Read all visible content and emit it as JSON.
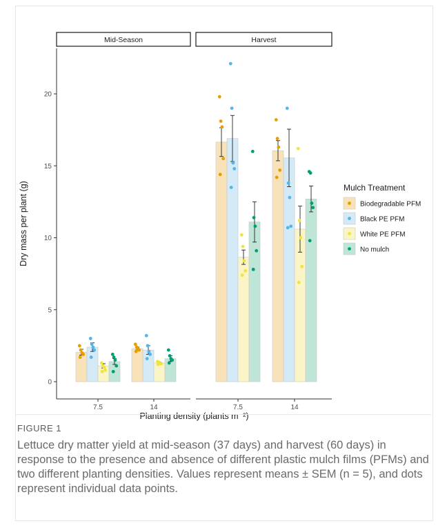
{
  "figure": {
    "label": "FIGURE 1",
    "caption": "Lettuce dry matter yield at mid-season (37 days) and harvest (60 days) in response to the presence and absence of different plastic mulch films (PFMs) and two different planting densities. Values represent means ± SEM (n = 5), and dots represent individual data points."
  },
  "chart_data": {
    "type": "bar",
    "panels": [
      "Mid-Season",
      "Harvest"
    ],
    "categories": [
      "7.5",
      "14"
    ],
    "xlabel": "Planting density (plants m⁻²)",
    "ylabel": "Dry mass per plant (g)",
    "ylim": [
      0,
      22.8
    ],
    "yticks": [
      0,
      5,
      10,
      15,
      20
    ],
    "legend": {
      "title": "Mulch Treatment",
      "position": "right"
    },
    "series": [
      {
        "name": "Biodegradable PFM",
        "color": "#E69F00",
        "fill": "#F8E2BA",
        "means": {
          "Mid-Season": [
            2.05,
            2.3
          ],
          "Harvest": [
            16.65,
            16.05
          ]
        },
        "sem": {
          "Mid-Season": [
            0.2,
            0.1
          ],
          "Harvest": [
            1.0,
            0.7
          ]
        },
        "points": {
          "Mid-Season": [
            [
              2.5,
              2.2,
              2.0,
              1.9,
              1.7
            ],
            [
              2.6,
              2.4,
              2.3,
              2.2,
              2.1
            ]
          ],
          "Harvest": [
            [
              19.8,
              18.1,
              17.7,
              15.5,
              14.4
            ],
            [
              18.2,
              16.9,
              16.3,
              14.7,
              14.2
            ]
          ]
        }
      },
      {
        "name": "Black PE PFM",
        "color": "#56B4E9",
        "fill": "#D4EAF7",
        "means": {
          "Mid-Season": [
            2.4,
            2.2
          ],
          "Harvest": [
            16.9,
            15.55
          ]
        },
        "sem": {
          "Mid-Season": [
            0.3,
            0.3
          ],
          "Harvest": [
            1.6,
            2.0
          ]
        },
        "points": {
          "Mid-Season": [
            [
              3.0,
              2.6,
              2.4,
              2.2,
              1.7
            ],
            [
              3.2,
              2.5,
              2.1,
              1.9,
              1.6
            ]
          ],
          "Harvest": [
            [
              22.1,
              19.0,
              15.2,
              14.8,
              13.5
            ],
            [
              19.0,
              13.8,
              12.8,
              10.8,
              10.7
            ]
          ]
        }
      },
      {
        "name": "White PE PFM",
        "color": "#F0E442",
        "fill": "#FAF5C6",
        "means": {
          "Mid-Season": [
            1.1,
            1.3
          ],
          "Harvest": [
            8.65,
            10.6
          ]
        },
        "sem": {
          "Mid-Season": [
            0.15,
            0.07
          ],
          "Harvest": [
            0.5,
            1.6
          ]
        },
        "points": {
          "Mid-Season": [
            [
              1.3,
              1.1,
              1.0,
              0.8,
              0.7
            ],
            [
              1.4,
              1.35,
              1.3,
              1.25,
              1.2
            ]
          ],
          "Harvest": [
            [
              10.2,
              9.4,
              8.4,
              7.7,
              7.4
            ],
            [
              16.2,
              11.2,
              10.0,
              8.0,
              6.9
            ]
          ]
        }
      },
      {
        "name": "No mulch",
        "color": "#009E73",
        "fill": "#BFE5D7",
        "means": {
          "Mid-Season": [
            1.4,
            1.6
          ],
          "Harvest": [
            11.1,
            12.7
          ]
        },
        "sem": {
          "Mid-Season": [
            0.2,
            0.2
          ],
          "Harvest": [
            1.4,
            0.9
          ]
        },
        "points": {
          "Mid-Season": [
            [
              1.9,
              1.7,
              1.5,
              1.1,
              0.7
            ],
            [
              2.2,
              1.8,
              1.6,
              1.5,
              1.3
            ]
          ],
          "Harvest": [
            [
              16.0,
              11.4,
              10.8,
              9.1,
              7.8
            ],
            [
              14.6,
              14.5,
              12.4,
              12.1,
              9.8
            ]
          ]
        }
      }
    ]
  }
}
